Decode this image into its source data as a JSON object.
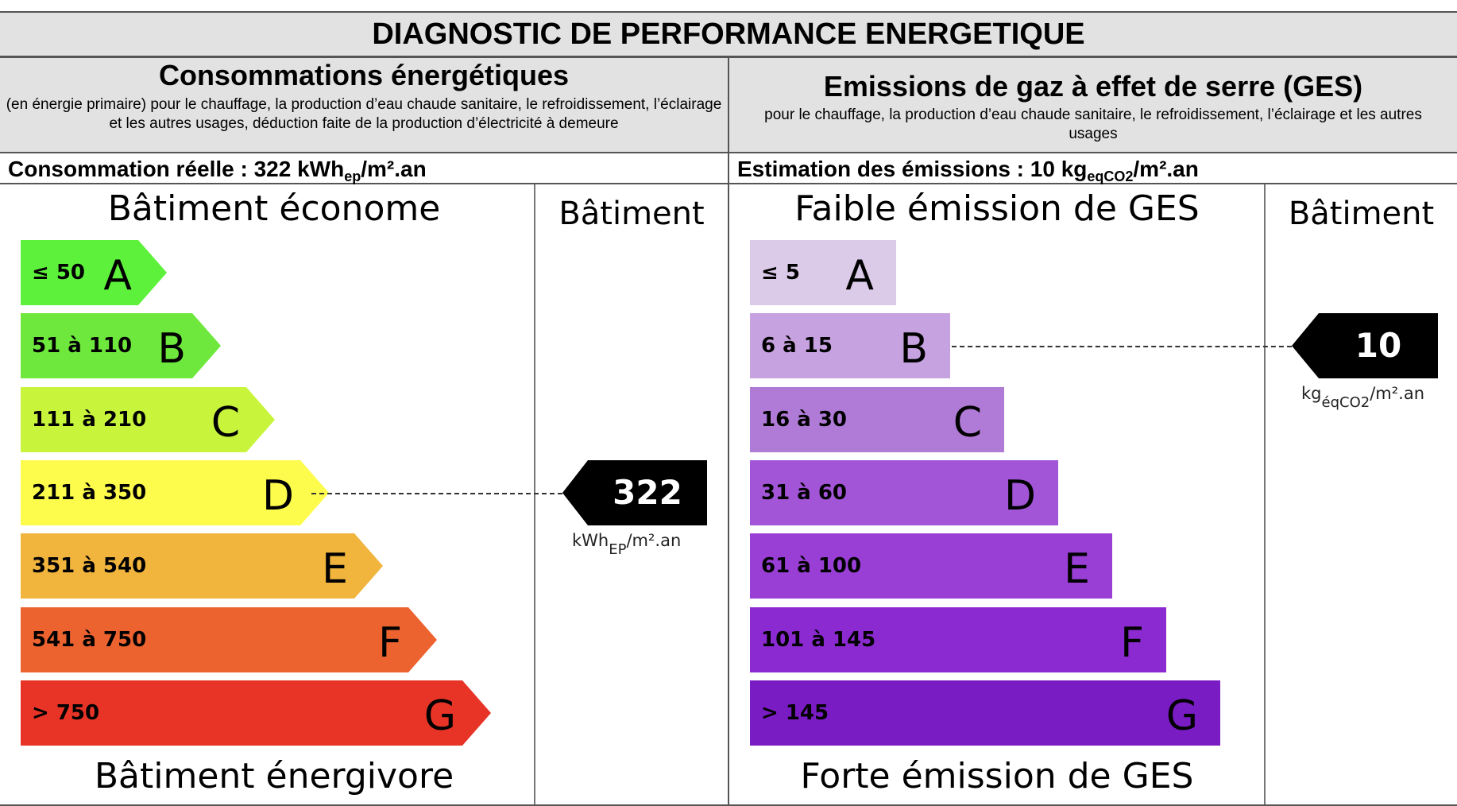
{
  "header": {
    "title": "DIAGNOSTIC DE PERFORMANCE ENERGETIQUE"
  },
  "energy": {
    "title": "Consommations énergétiques",
    "subtitle": "(en énergie primaire) pour le chauffage, la production d’eau chaude sanitaire, le refroidissement, l’éclairage et les autres usages, déduction faite de la production d’électricité à demeure",
    "real_prefix": "Consommation réelle : 322 kWh",
    "real_sub": "ep",
    "real_suffix": "/m².an",
    "top_label": "Bâtiment économe",
    "bottom_label": "Bâtiment énergivore",
    "column_label": "Bâtiment",
    "value": "322",
    "unit_main": "kWh",
    "unit_sub": "EP",
    "unit_suffix": "/m².an",
    "current_class": "D",
    "classes": [
      {
        "letter": "A",
        "range": "≤ 50",
        "color": "#5ef13c"
      },
      {
        "letter": "B",
        "range": "51 à 110",
        "color": "#6ee83c"
      },
      {
        "letter": "C",
        "range": "111 à 210",
        "color": "#c8f53c"
      },
      {
        "letter": "D",
        "range": "211 à 350",
        "color": "#fdfc4c"
      },
      {
        "letter": "E",
        "range": "351 à 540",
        "color": "#f1b43d"
      },
      {
        "letter": "F",
        "range": "541 à 750",
        "color": "#ec6330"
      },
      {
        "letter": "G",
        "range": "> 750",
        "color": "#e83427"
      }
    ]
  },
  "ghg": {
    "title": "Emissions de gaz à effet de serre (GES)",
    "subtitle": "pour le chauffage, la production d’eau chaude sanitaire, le refroidissement, l’éclairage et les autres usages",
    "real_prefix": "Estimation des émissions : 10 kg",
    "real_sub": "eqCO2",
    "real_suffix": "/m².an",
    "top_label": "Faible émission de GES",
    "bottom_label": "Forte émission de GES",
    "column_label": "Bâtiment",
    "value": "10",
    "unit_main": "kg",
    "unit_sub": "éqCO2",
    "unit_suffix": "/m².an",
    "current_class": "B",
    "classes": [
      {
        "letter": "A",
        "range": "≤ 5",
        "color": "#dccbe8"
      },
      {
        "letter": "B",
        "range": "6 à 15",
        "color": "#c7a2e0"
      },
      {
        "letter": "C",
        "range": "16 à 30",
        "color": "#b07ad7"
      },
      {
        "letter": "D",
        "range": "31 à 60",
        "color": "#a355d8"
      },
      {
        "letter": "E",
        "range": "61 à 100",
        "color": "#9a3fd6"
      },
      {
        "letter": "F",
        "range": "101 à 145",
        "color": "#8c2ad2"
      },
      {
        "letter": "G",
        "range": "> 145",
        "color": "#7a1cc4"
      }
    ]
  }
}
